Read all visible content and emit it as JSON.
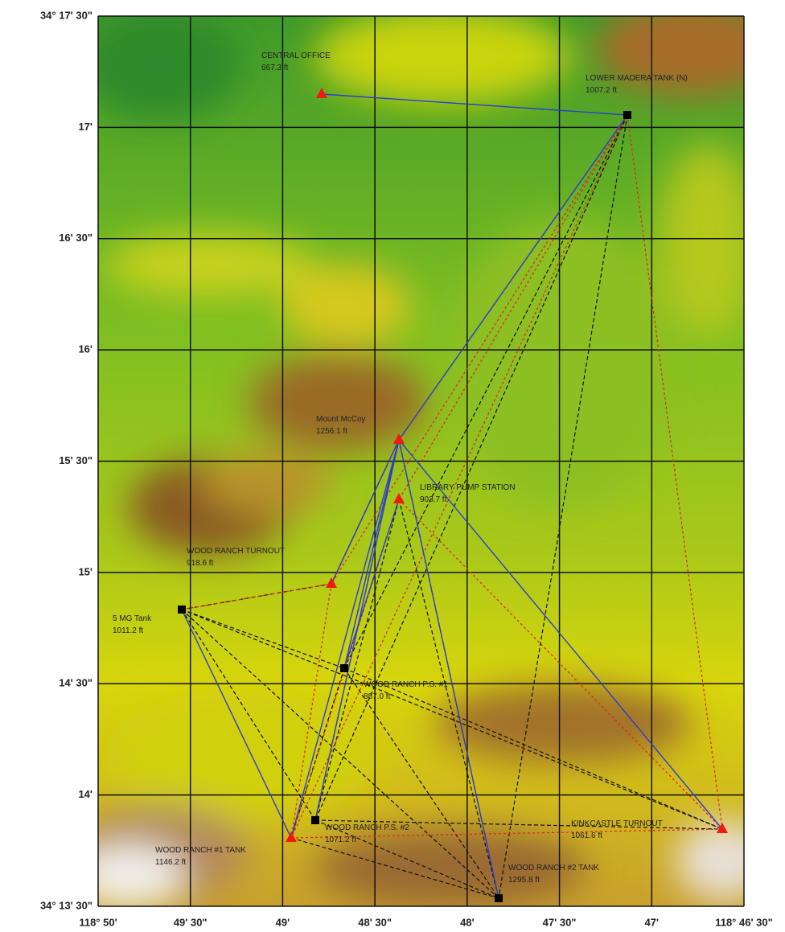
{
  "map": {
    "lat_ticks": [
      "34° 17' 30\"",
      "17'",
      "16' 30\"",
      "16'",
      "15' 30\"",
      "15'",
      "14' 30\"",
      "14'",
      "34° 13' 30\""
    ],
    "lon_ticks": [
      "118° 50'",
      "49' 30\"",
      "49'",
      "48' 30\"",
      "48'",
      "47' 30\"",
      "47'",
      "118° 46' 30\""
    ],
    "sites": [
      {
        "name": "CENTRAL OFFICE",
        "elevation": "667.3 ft"
      },
      {
        "name": "LOWER MADERA TANK (N)",
        "elevation": "1007.2 ft"
      },
      {
        "name": "Mount McCoy",
        "elevation": "1256.1 ft"
      },
      {
        "name": "LIBRARY PUMP STATION",
        "elevation": "903.7 ft"
      },
      {
        "name": "WOOD RANCH TURNOUT",
        "elevation": "918.6 ft"
      },
      {
        "name": "5 MG Tank",
        "elevation": "1011.2 ft"
      },
      {
        "name": "WOOD RANCH P.S. #1",
        "elevation": "887.0 ft"
      },
      {
        "name": "WOOD RANCH P.S. #2",
        "elevation": "1071.2 ft"
      },
      {
        "name": "WOOD RANCH #1 TANK",
        "elevation": "1146.2 ft"
      },
      {
        "name": "KINKCASTLE TURNOUT",
        "elevation": "1061.6 ft"
      },
      {
        "name": "WOOD RANCH #2 TANK",
        "elevation": "1295.8 ft"
      }
    ]
  }
}
